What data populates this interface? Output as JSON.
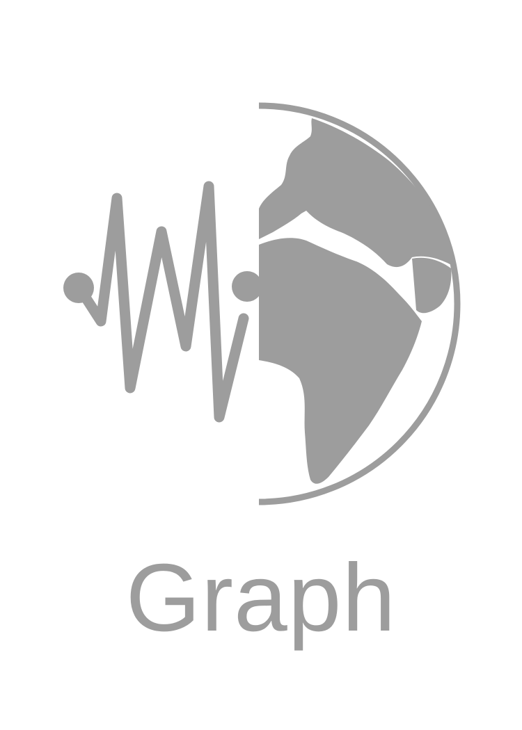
{
  "app": {
    "title": "Graph",
    "logo_icon": "seismograph-globe-icon"
  },
  "colors": {
    "background": "#ffffff",
    "logo": "#9d9d9d",
    "title": "#9d9d9d"
  }
}
